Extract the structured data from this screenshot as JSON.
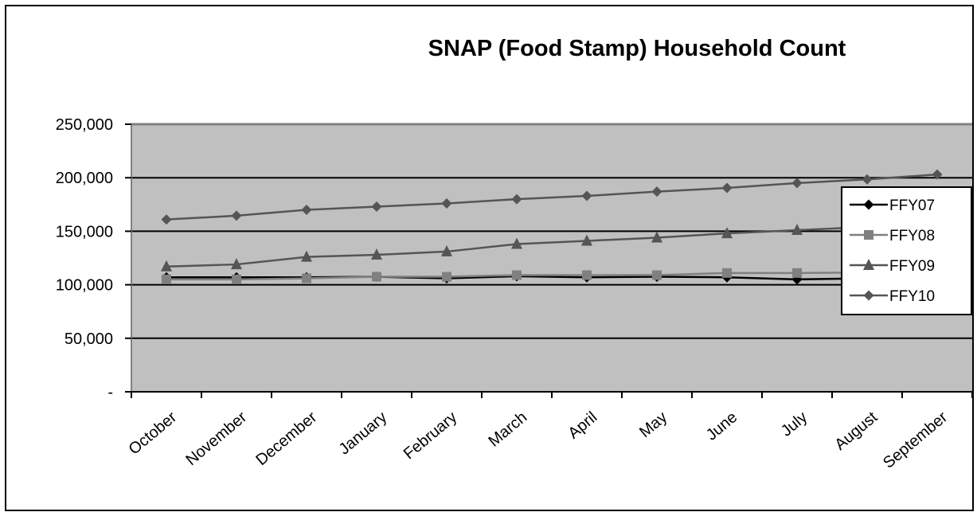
{
  "chart_data": {
    "type": "line",
    "title": "SNAP (Food Stamp) Household Count",
    "xlabel": "",
    "ylabel": "",
    "categories": [
      "October",
      "November",
      "December",
      "January",
      "February",
      "March",
      "April",
      "May",
      "June",
      "July",
      "August",
      "September"
    ],
    "ylim": [
      0,
      250000
    ],
    "yticks": [
      {
        "value": 0,
        "label": "-"
      },
      {
        "value": 50000,
        "label": "50,000"
      },
      {
        "value": 100000,
        "label": "100,000"
      },
      {
        "value": 150000,
        "label": "150,000"
      },
      {
        "value": 200000,
        "label": "200,000"
      },
      {
        "value": 250000,
        "label": "250,000"
      }
    ],
    "grid": true,
    "legend_position": "right",
    "plot_background": "#c0c0c0",
    "series": [
      {
        "name": "FFY07",
        "marker": "diamond",
        "color": "#000000",
        "values": [
          107000,
          107000,
          107000,
          107500,
          106000,
          108000,
          107000,
          107500,
          107000,
          105000,
          106000,
          106500
        ]
      },
      {
        "name": "FFY08",
        "marker": "square",
        "color": "#808080",
        "values": [
          105000,
          105000,
          106000,
          107500,
          107500,
          109000,
          109000,
          109000,
          111000,
          111000,
          111500,
          112000
        ]
      },
      {
        "name": "FFY09",
        "marker": "triangle",
        "color": "#555555",
        "values": [
          117000,
          119000,
          126000,
          128000,
          131000,
          138000,
          141000,
          144000,
          148000,
          151000,
          154000,
          157000
        ]
      },
      {
        "name": "FFY10",
        "marker": "diamond",
        "color": "#555555",
        "values": [
          161000,
          164500,
          170000,
          173000,
          176000,
          180000,
          183000,
          187000,
          190500,
          195000,
          198500,
          203000
        ]
      }
    ]
  }
}
